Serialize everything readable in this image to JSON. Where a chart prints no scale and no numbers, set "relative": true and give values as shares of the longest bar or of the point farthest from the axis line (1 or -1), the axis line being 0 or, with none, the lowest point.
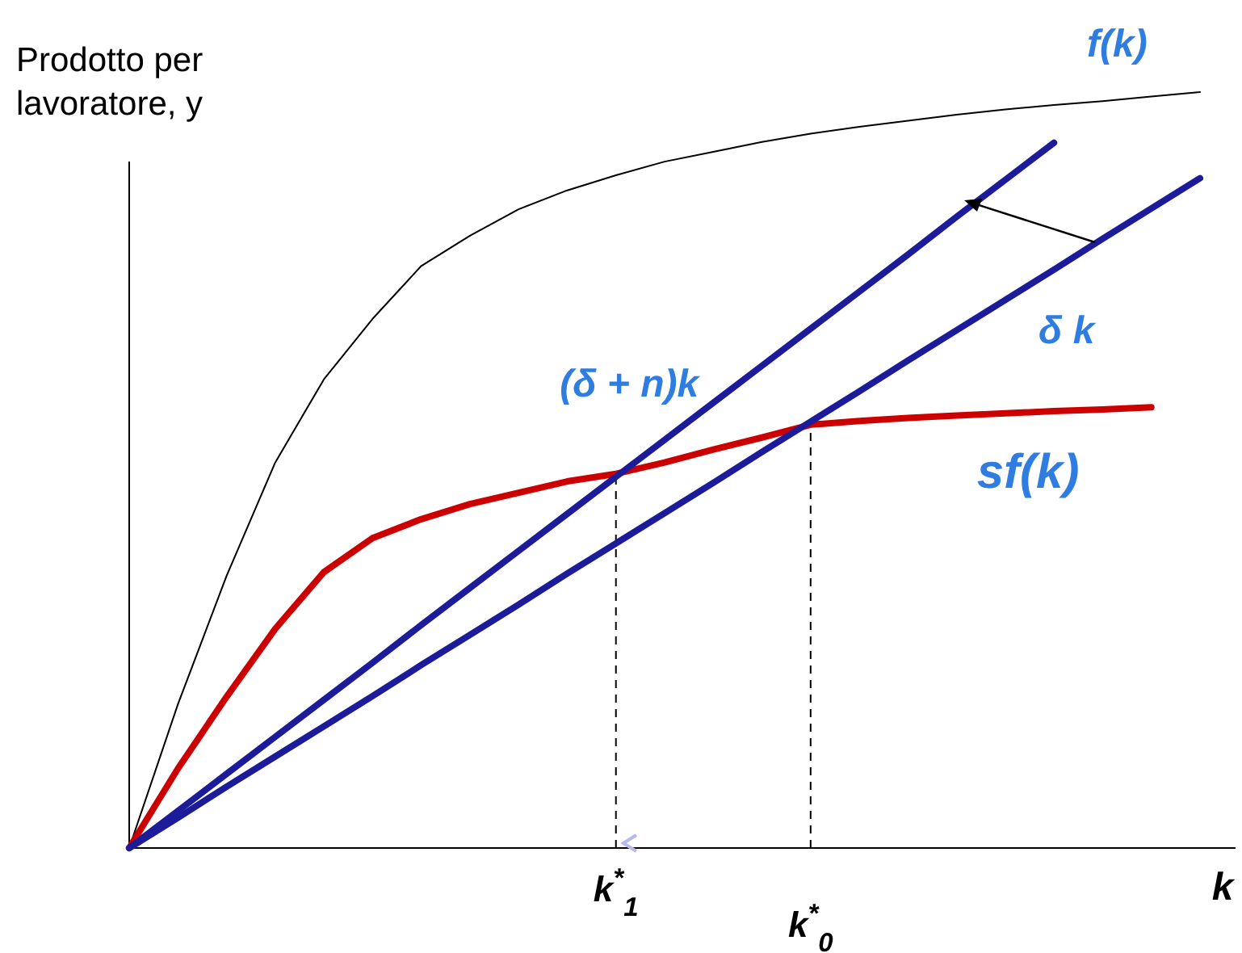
{
  "chart_data": {
    "type": "line",
    "relative": true,
    "ylabel": "Prodotto per\nlavoratore, y",
    "xlabel": "k",
    "categories": [
      null,
      null,
      null,
      null,
      null,
      null,
      null,
      null,
      null,
      null,
      "k$^{*}$$_{1}$",
      null,
      null,
      null,
      "k$^{*}$$_{0}$",
      null,
      null,
      null,
      null,
      null,
      null,
      null,
      null
    ],
    "legend": false,
    "marker": "none",
    "series": [
      {
        "name": "f(k)",
        "color": "#000000",
        "values": [
          0,
          0.19,
          0.36,
          0.51,
          0.62,
          0.7,
          0.77,
          0.81,
          0.845,
          0.87,
          0.89,
          0.908,
          0.921,
          0.934,
          0.945,
          0.954,
          0.962,
          0.97,
          0.977,
          0.983,
          0.988,
          0.994,
          1
        ]
      },
      {
        "name": "sf(k)",
        "color": "#cc0000",
        "values": [
          0,
          0.105,
          0.2,
          0.29,
          0.365,
          0.41,
          0.435,
          0.455,
          0.47,
          0.485,
          0.495,
          0.51,
          0.527,
          0.543,
          0.56,
          0.565,
          0.569,
          0.572,
          0.575,
          0.578,
          0.58,
          0.583,
          null
        ]
      },
      {
        "name": "(δ + n)k",
        "color": "#1c1c9a",
        "values": [
          0,
          0.049,
          0.098,
          0.147,
          0.196,
          0.245,
          0.295,
          0.344,
          0.393,
          0.442,
          0.491,
          0.54,
          0.589,
          0.638,
          0.687,
          0.736,
          0.785,
          0.835,
          0.884,
          0.933,
          null,
          null,
          null
        ]
      },
      {
        "name": "δ k",
        "color": "#1c1c9a",
        "values": [
          0,
          0.04,
          0.081,
          0.121,
          0.161,
          0.201,
          0.242,
          0.282,
          0.322,
          0.363,
          0.403,
          0.443,
          0.483,
          0.524,
          0.564,
          0.604,
          0.645,
          0.685,
          0.725,
          0.765,
          0.806,
          0.846,
          0.886
        ]
      }
    ]
  }
}
